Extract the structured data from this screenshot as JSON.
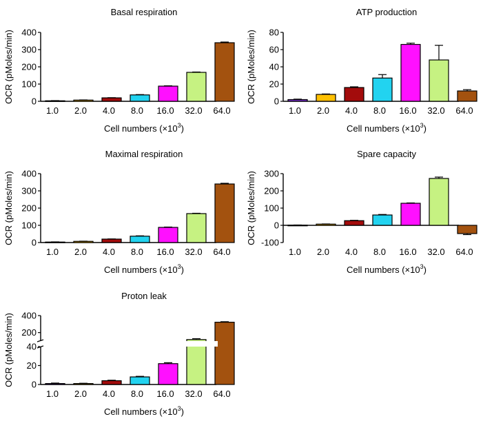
{
  "xlabel_main": "Cell numbers (×10",
  "xlabel_exp": "3",
  "xlabel_close": ")",
  "ylabel": "OCR (pMoles/min)",
  "colors": [
    "#7b2fd0",
    "#ffc000",
    "#a30c0c",
    "#22d3f0",
    "#ff10ff",
    "#c6f282",
    "#a3520f"
  ],
  "chart_data": [
    {
      "type": "bar",
      "title": "Basal respiration",
      "categories": [
        "1.0",
        "2.0",
        "4.0",
        "8.0",
        "16.0",
        "32.0",
        "64.0"
      ],
      "values": [
        3,
        7,
        20,
        37,
        88,
        168,
        340
      ],
      "errors": [
        1,
        1,
        1,
        2,
        2,
        2,
        4
      ],
      "ylim": [
        0,
        400
      ],
      "yticks": [
        "0",
        "100",
        "200",
        "300",
        "400"
      ]
    },
    {
      "type": "bar",
      "title": "ATP production",
      "categories": [
        "1.0",
        "2.0",
        "4.0",
        "8.0",
        "16.0",
        "32.0",
        "64.0"
      ],
      "values": [
        2,
        8,
        16,
        27,
        66,
        48,
        12
      ],
      "errors": [
        0.5,
        0.5,
        0.8,
        4,
        1.5,
        17,
        1.5
      ],
      "ylim": [
        0,
        80
      ],
      "yticks": [
        "0",
        "20",
        "40",
        "60",
        "80"
      ]
    },
    {
      "type": "bar",
      "title": "Maximal respiration",
      "categories": [
        "1.0",
        "2.0",
        "4.0",
        "8.0",
        "16.0",
        "32.0",
        "64.0"
      ],
      "values": [
        3,
        7,
        20,
        37,
        88,
        168,
        340
      ],
      "errors": [
        1,
        1,
        1,
        2,
        2,
        2,
        4
      ],
      "ylim": [
        0,
        400
      ],
      "yticks": [
        "0",
        "100",
        "200",
        "300",
        "400"
      ]
    },
    {
      "type": "bar",
      "title": "Spare capacity",
      "categories": [
        "1.0",
        "2.0",
        "4.0",
        "8.0",
        "16.0",
        "32.0",
        "64.0"
      ],
      "values": [
        1,
        7,
        27,
        60,
        128,
        272,
        -48
      ],
      "errors": [
        1,
        1,
        2,
        3,
        2,
        8,
        6
      ],
      "ylim": [
        -100,
        300
      ],
      "yticks": [
        "-100",
        "0",
        "100",
        "200",
        "300"
      ]
    },
    {
      "type": "bar",
      "title": "Proton leak",
      "categories": [
        "1.0",
        "2.0",
        "4.0",
        "8.0",
        "16.0",
        "32.0",
        "64.0"
      ],
      "values": [
        1,
        1,
        4,
        8,
        22,
        118,
        322
      ],
      "errors": [
        0.5,
        0.3,
        0.5,
        0.6,
        1,
        10,
        6
      ],
      "ylim": [
        0,
        400
      ],
      "axis_break": [
        40,
        100
      ],
      "yticks": [
        "0",
        "20",
        "40",
        "200",
        "400"
      ]
    }
  ]
}
